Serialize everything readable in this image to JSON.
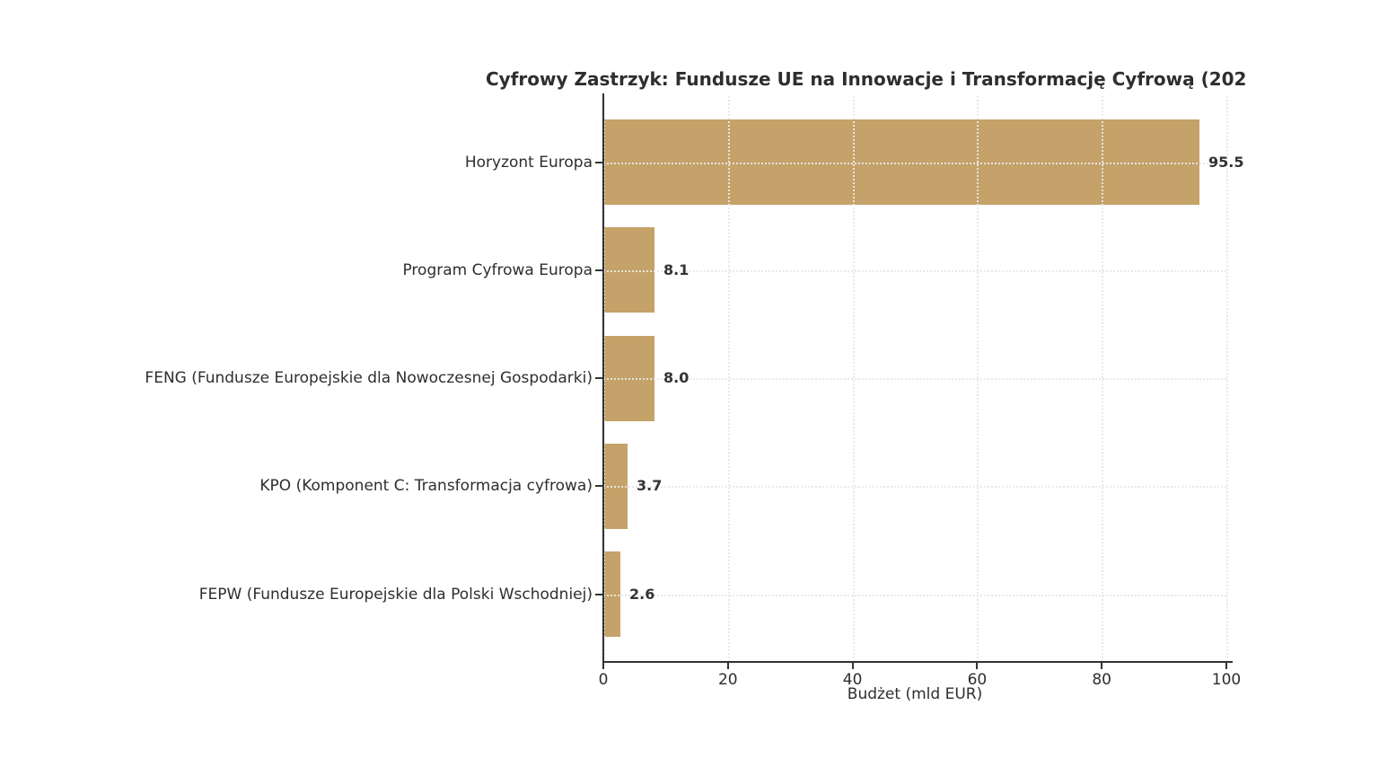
{
  "chart_data": {
    "type": "bar",
    "orientation": "horizontal",
    "title": "Cyfrowy Zastrzyk: Fundusze UE na Innowacje i Transformację Cyfrową (202",
    "title_clipped_at_right": true,
    "xlabel": "Budżet (mld EUR)",
    "ylabel": "",
    "categories": [
      "Horyzont Europa",
      "Program Cyfrowa Europa",
      "FENG (Fundusze Europejskie dla Nowoczesnej Gospodarki)",
      "KPO (Komponent C: Transformacja cyfrowa)",
      "FEPW (Fundusze Europejskie dla Polski Wschodniej)"
    ],
    "values": [
      95.5,
      8.1,
      8.0,
      3.7,
      2.6
    ],
    "value_labels": [
      "95.5",
      "8.1",
      "8.0",
      "3.7",
      "2.6"
    ],
    "x_ticks": [
      "0",
      "20",
      "40",
      "60",
      "80",
      "100"
    ],
    "x_tick_values": [
      0,
      20,
      40,
      60,
      80,
      100
    ],
    "xlim": [
      0,
      100
    ],
    "grid": "dotted, both axes",
    "legend": "none",
    "bar_color": "#c5a269",
    "axis_color": "#333333",
    "text_color": "#2e2e2e",
    "grid_color": "#e8e8e8",
    "background_color": "#ffffff"
  }
}
